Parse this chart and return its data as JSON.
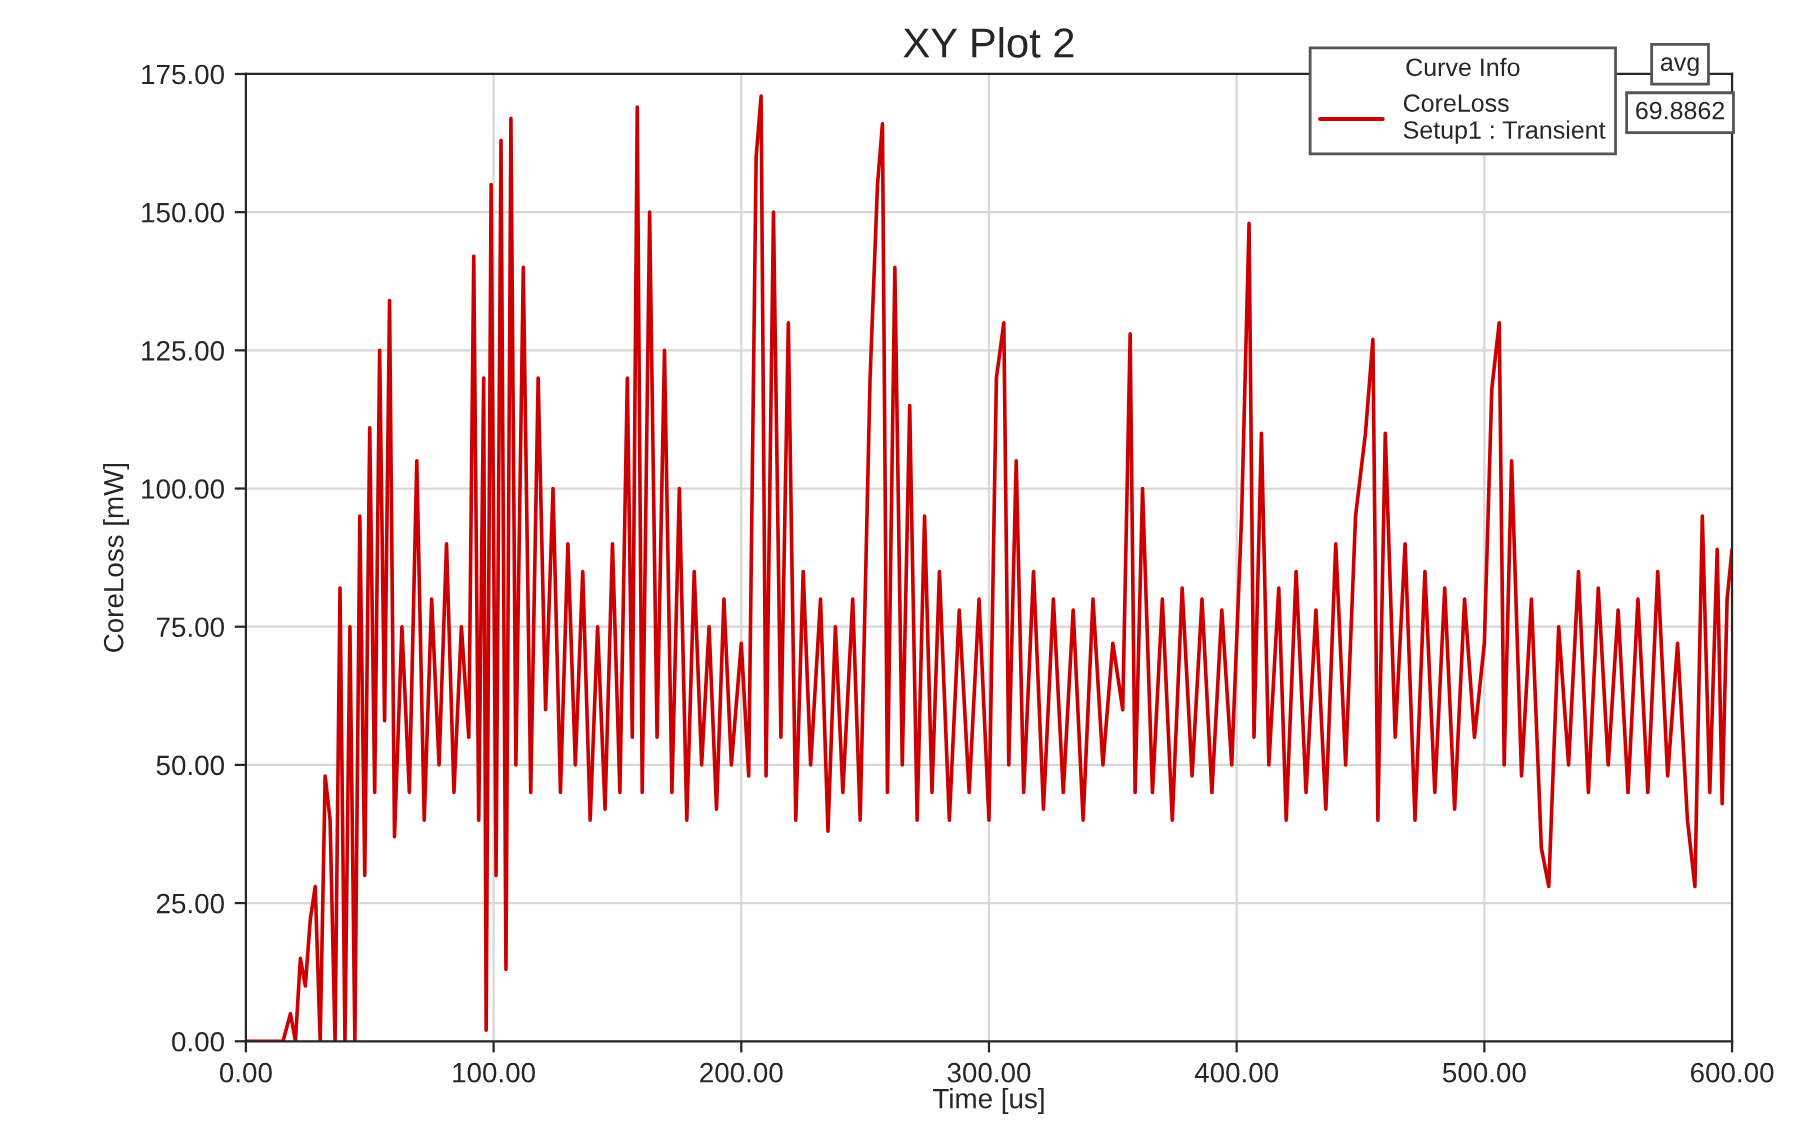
{
  "chart_data": {
    "type": "line",
    "title": "XY Plot 2",
    "xlabel": "Time [us]",
    "ylabel": "CoreLoss [mW]",
    "legend_title": "Curve Info",
    "annotations": [
      "avg",
      "69.8862"
    ],
    "xlim": [
      0,
      600
    ],
    "ylim": [
      0,
      175
    ],
    "xticks": [
      {
        "value": 0,
        "label": "0.00"
      },
      {
        "value": 100,
        "label": "100.00"
      },
      {
        "value": 200,
        "label": "200.00"
      },
      {
        "value": 300,
        "label": "300.00"
      },
      {
        "value": 400,
        "label": "400.00"
      },
      {
        "value": 500,
        "label": "500.00"
      },
      {
        "value": 600,
        "label": "600.00"
      }
    ],
    "yticks": [
      {
        "value": 0,
        "label": "0.00"
      },
      {
        "value": 25,
        "label": "25.00"
      },
      {
        "value": 50,
        "label": "50.00"
      },
      {
        "value": 75,
        "label": "75.00"
      },
      {
        "value": 100,
        "label": "100.00"
      },
      {
        "value": 125,
        "label": "125.00"
      },
      {
        "value": 150,
        "label": "150.00"
      },
      {
        "value": 175,
        "label": "175.00"
      }
    ],
    "grid": true,
    "legend": "top right",
    "marker": "none",
    "line_style": "solid",
    "series": [
      {
        "name": "CoreLoss\nSetup1 : Transient",
        "color": "#cc0000",
        "x": [
          0,
          15,
          18,
          20,
          22,
          24,
          26,
          28,
          30,
          32,
          34,
          36,
          38,
          40,
          42,
          44,
          46,
          48,
          50,
          52,
          54,
          56,
          58,
          60,
          63,
          66,
          69,
          72,
          75,
          78,
          81,
          84,
          87,
          90,
          92,
          94,
          96,
          97,
          99,
          101,
          103,
          105,
          107,
          109,
          112,
          115,
          118,
          121,
          124,
          127,
          130,
          133,
          136,
          139,
          142,
          145,
          148,
          151,
          154,
          156,
          158,
          160,
          163,
          166,
          169,
          172,
          175,
          178,
          181,
          184,
          187,
          190,
          193,
          196,
          200,
          203,
          206,
          208,
          210,
          213,
          216,
          219,
          222,
          225,
          228,
          232,
          235,
          238,
          241,
          245,
          248,
          252,
          255,
          257,
          259,
          262,
          265,
          268,
          271,
          274,
          277,
          280,
          284,
          288,
          292,
          296,
          300,
          303,
          306,
          308,
          311,
          314,
          318,
          322,
          326,
          330,
          334,
          338,
          342,
          346,
          350,
          354,
          357,
          359,
          362,
          366,
          370,
          374,
          378,
          382,
          386,
          390,
          394,
          398,
          402,
          405,
          407,
          410,
          413,
          417,
          420,
          424,
          428,
          432,
          436,
          440,
          444,
          448,
          452,
          455,
          457,
          460,
          464,
          468,
          472,
          476,
          480,
          484,
          488,
          492,
          496,
          500,
          503,
          506,
          508,
          511,
          515,
          519,
          523,
          526,
          530,
          534,
          538,
          542,
          546,
          550,
          554,
          558,
          562,
          566,
          570,
          574,
          578,
          582,
          585,
          588,
          591,
          594,
          596,
          598,
          600
        ],
        "values": [
          0,
          0,
          5,
          0,
          15,
          10,
          22,
          28,
          0,
          48,
          40,
          0,
          82,
          0,
          75,
          0,
          95,
          30,
          111,
          45,
          125,
          58,
          134,
          37,
          75,
          45,
          105,
          40,
          80,
          50,
          90,
          45,
          75,
          55,
          142,
          40,
          120,
          2,
          155,
          30,
          163,
          13,
          167,
          50,
          140,
          45,
          120,
          60,
          100,
          45,
          90,
          50,
          85,
          40,
          75,
          42,
          90,
          45,
          120,
          55,
          169,
          45,
          150,
          55,
          125,
          45,
          100,
          40,
          85,
          50,
          75,
          42,
          80,
          50,
          72,
          48,
          160,
          171,
          48,
          150,
          55,
          130,
          40,
          85,
          50,
          80,
          38,
          75,
          45,
          80,
          40,
          120,
          155,
          166,
          45,
          140,
          50,
          115,
          40,
          95,
          45,
          85,
          40,
          78,
          45,
          80,
          40,
          120,
          130,
          50,
          105,
          45,
          85,
          42,
          80,
          45,
          78,
          40,
          80,
          50,
          72,
          60,
          128,
          45,
          100,
          45,
          80,
          40,
          82,
          48,
          80,
          45,
          78,
          50,
          95,
          148,
          55,
          110,
          50,
          82,
          40,
          85,
          45,
          78,
          42,
          90,
          50,
          95,
          110,
          127,
          40,
          110,
          55,
          90,
          40,
          85,
          45,
          82,
          42,
          80,
          55,
          72,
          118,
          130,
          50,
          105,
          48,
          80,
          35,
          28,
          75,
          50,
          85,
          45,
          82,
          50,
          78,
          45,
          80,
          45,
          85,
          48,
          72,
          40,
          28,
          95,
          45,
          89,
          43,
          80,
          89
        ]
      }
    ]
  }
}
